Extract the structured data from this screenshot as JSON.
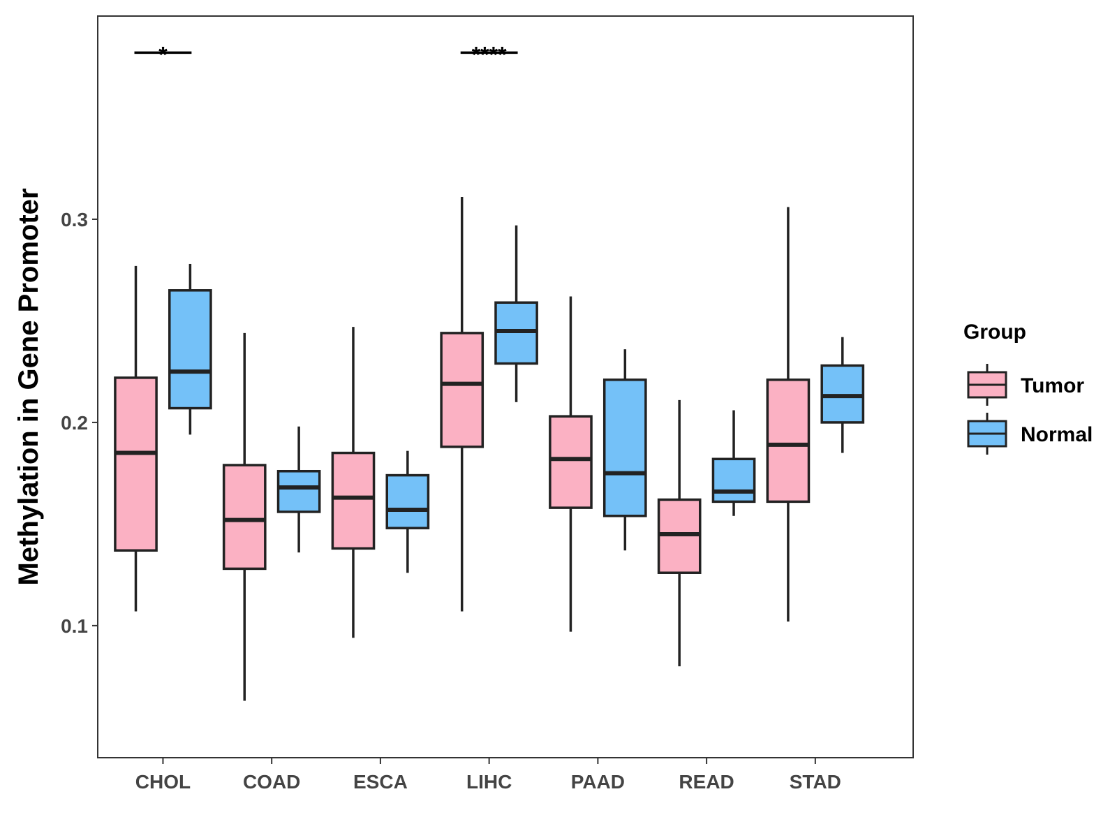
{
  "chart_data": {
    "type": "boxplot",
    "title": "",
    "xlabel": "",
    "ylabel": "Methylation in Gene Promoter",
    "ylim": [
      0.035,
      0.4
    ],
    "yticks": [
      {
        "value": 0.1,
        "label": "0.1"
      },
      {
        "value": 0.2,
        "label": "0.2"
      },
      {
        "value": 0.3,
        "label": "0.3"
      }
    ],
    "categories": [
      "CHOL",
      "COAD",
      "ESCA",
      "LIHC",
      "PAAD",
      "READ",
      "STAD"
    ],
    "legend": {
      "title": "Group",
      "position": "right",
      "entries": [
        {
          "name": "Tumor",
          "color": "#fbb1c3"
        },
        {
          "name": "Normal",
          "color": "#74c1f8"
        }
      ]
    },
    "series": [
      {
        "name": "Tumor",
        "color": "#fbb1c3",
        "boxes": [
          {
            "min": 0.107,
            "q1": 0.137,
            "median": 0.185,
            "q3": 0.222,
            "max": 0.277
          },
          {
            "min": 0.063,
            "q1": 0.128,
            "median": 0.152,
            "q3": 0.179,
            "max": 0.244
          },
          {
            "min": 0.094,
            "q1": 0.138,
            "median": 0.163,
            "q3": 0.185,
            "max": 0.247
          },
          {
            "min": 0.107,
            "q1": 0.188,
            "median": 0.219,
            "q3": 0.244,
            "max": 0.311
          },
          {
            "min": 0.097,
            "q1": 0.158,
            "median": 0.182,
            "q3": 0.203,
            "max": 0.262
          },
          {
            "min": 0.08,
            "q1": 0.126,
            "median": 0.145,
            "q3": 0.162,
            "max": 0.211
          },
          {
            "min": 0.102,
            "q1": 0.161,
            "median": 0.189,
            "q3": 0.221,
            "max": 0.306
          }
        ]
      },
      {
        "name": "Normal",
        "color": "#74c1f8",
        "boxes": [
          {
            "min": 0.194,
            "q1": 0.207,
            "median": 0.225,
            "q3": 0.265,
            "max": 0.278
          },
          {
            "min": 0.136,
            "q1": 0.156,
            "median": 0.168,
            "q3": 0.176,
            "max": 0.198
          },
          {
            "min": 0.126,
            "q1": 0.148,
            "median": 0.157,
            "q3": 0.174,
            "max": 0.186
          },
          {
            "min": 0.21,
            "q1": 0.229,
            "median": 0.245,
            "q3": 0.259,
            "max": 0.297
          },
          {
            "min": 0.137,
            "q1": 0.154,
            "median": 0.175,
            "q3": 0.221,
            "max": 0.236
          },
          {
            "min": 0.154,
            "q1": 0.161,
            "median": 0.166,
            "q3": 0.182,
            "max": 0.206
          },
          {
            "min": 0.185,
            "q1": 0.2,
            "median": 0.213,
            "q3": 0.228,
            "max": 0.242
          }
        ]
      }
    ],
    "significance": [
      {
        "category": "CHOL",
        "label": "*",
        "y": 0.382
      },
      {
        "category": "LIHC",
        "label": "****",
        "y": 0.382
      }
    ]
  }
}
